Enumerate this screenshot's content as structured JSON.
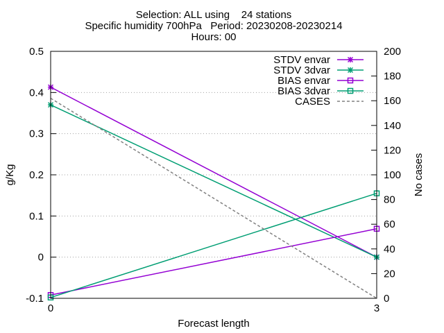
{
  "chart_data": {
    "type": "line",
    "title_lines": [
      "Selection: ALL using    24 stations",
      "Specific humidity 700hPa   Period: 20230208-20230214",
      "Hours: 00"
    ],
    "xlabel": "Forecast length",
    "ylabel": "g/Kg",
    "y2label": "No cases",
    "x": [
      0,
      3
    ],
    "xlim": [
      0,
      3
    ],
    "ylim": [
      -0.1,
      0.5
    ],
    "y2lim": [
      0,
      200
    ],
    "x_ticks": [
      "0",
      "3"
    ],
    "y_ticks": [
      "-0.1",
      "0",
      "0.1",
      "0.2",
      "0.3",
      "0.4",
      "0.5"
    ],
    "y2_ticks": [
      "0",
      "20",
      "40",
      "60",
      "80",
      "100",
      "120",
      "140",
      "160",
      "180",
      "200"
    ],
    "grid": true,
    "legend_position": "top-right",
    "series": [
      {
        "name": "STDV envar",
        "values": [
          0.413,
          0.0
        ],
        "axis": "y",
        "color": "#9400d3",
        "marker": "star",
        "dash": "solid"
      },
      {
        "name": "STDV 3dvar",
        "values": [
          0.37,
          0.0
        ],
        "axis": "y",
        "color": "#009e73",
        "marker": "star",
        "dash": "solid"
      },
      {
        "name": "BIAS envar",
        "values": [
          -0.092,
          0.069
        ],
        "axis": "y",
        "color": "#9400d3",
        "marker": "square",
        "dash": "solid"
      },
      {
        "name": "BIAS 3dvar",
        "values": [
          -0.098,
          0.155
        ],
        "axis": "y",
        "color": "#009e73",
        "marker": "square",
        "dash": "solid"
      },
      {
        "name": "CASES",
        "values": [
          162,
          0
        ],
        "axis": "y2",
        "color": "#808080",
        "marker": "none",
        "dash": "dashed"
      }
    ]
  }
}
